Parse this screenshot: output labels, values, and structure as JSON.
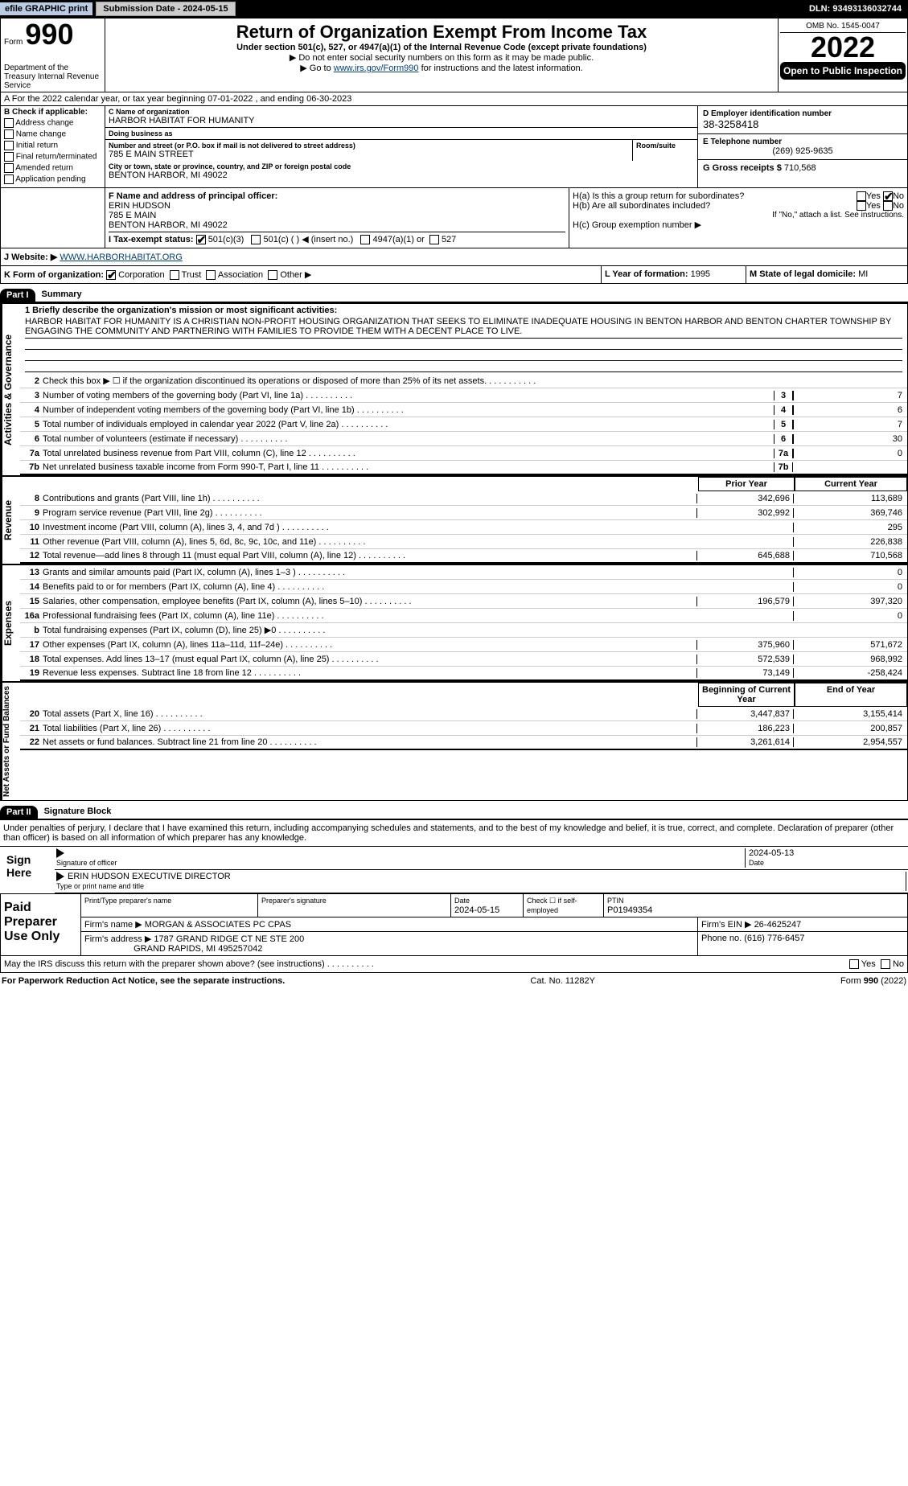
{
  "topbar": {
    "efile": "efile GRAPHIC print",
    "submission": "Submission Date - 2024-05-15",
    "dln": "DLN: 93493136032744"
  },
  "header": {
    "formword": "Form",
    "formnum": "990",
    "dept": "Department of the Treasury Internal Revenue Service",
    "title": "Return of Organization Exempt From Income Tax",
    "sub": "Under section 501(c), 527, or 4947(a)(1) of the Internal Revenue Code (except private foundations)",
    "note1": "▶ Do not enter social security numbers on this form as it may be made public.",
    "note2_pre": "▶ Go to ",
    "note2_link": "www.irs.gov/Form990",
    "note2_post": " for instructions and the latest information.",
    "omb": "OMB No. 1545-0047",
    "year": "2022",
    "inspect": "Open to Public Inspection"
  },
  "rowA": {
    "text": "A For the 2022 calendar year, or tax year beginning 07-01-2022    , and ending 06-30-2023"
  },
  "B": {
    "heading": "B Check if applicable:",
    "items": [
      "Address change",
      "Name change",
      "Initial return",
      "Final return/terminated",
      "Amended return",
      "Application pending"
    ]
  },
  "C": {
    "name_label": "C Name of organization",
    "name": "HARBOR HABITAT FOR HUMANITY",
    "dba_label": "Doing business as",
    "dba": "",
    "street_label": "Number and street (or P.O. box if mail is not delivered to street address)",
    "street": "785 E MAIN STREET",
    "room_label": "Room/suite",
    "city_label": "City or town, state or province, country, and ZIP or foreign postal code",
    "city": "BENTON HARBOR, MI  49022",
    "F_label": "F Name and address of principal officer:",
    "F_name": "ERIN HUDSON",
    "F_street": "785 E MAIN",
    "F_city": "BENTON HARBOR, MI  49022"
  },
  "D": {
    "ein_label": "D Employer identification number",
    "ein": "38-3258418",
    "phone_label": "E Telephone number",
    "phone": "(269) 925-9635",
    "gross_label": "G Gross receipts $",
    "gross": "710,568"
  },
  "H": {
    "a_label": "H(a)  Is this a group return for subordinates?",
    "a_yes": "Yes",
    "a_no": "No",
    "b_label": "H(b)  Are all subordinates included?",
    "b_yes": "Yes",
    "b_no": "No",
    "b_note": "If \"No,\" attach a list. See instructions.",
    "c_label": "H(c)  Group exemption number ▶"
  },
  "I": {
    "label": "I  Tax-exempt status:",
    "o1": "501(c)(3)",
    "o2": "501(c) (   ) ◀ (insert no.)",
    "o3": "4947(a)(1) or",
    "o4": "527"
  },
  "J": {
    "label": "J   Website: ▶",
    "url": "WWW.HARBORHABITAT.ORG"
  },
  "K": {
    "label": "K Form of organization:",
    "o1": "Corporation",
    "o2": "Trust",
    "o3": "Association",
    "o4": "Other ▶"
  },
  "L": {
    "label": "L Year of formation:",
    "val": "1995"
  },
  "M": {
    "label": "M State of legal domicile:",
    "val": "MI"
  },
  "part1": {
    "header": "Part I",
    "title": "Summary"
  },
  "vtabs": {
    "act": "Activities & Governance",
    "rev": "Revenue",
    "exp": "Expenses",
    "net": "Net Assets or Fund Balances"
  },
  "mission": {
    "label": "1  Briefly describe the organization's mission or most significant activities:",
    "text": "HARBOR HABITAT FOR HUMANITY IS A CHRISTIAN NON-PROFIT HOUSING ORGANIZATION THAT SEEKS TO ELIMINATE INADEQUATE HOUSING IN BENTON HARBOR AND BENTON CHARTER TOWNSHIP BY ENGAGING THE COMMUNITY AND PARTNERING WITH FAMILIES TO PROVIDE THEM WITH A DECENT PLACE TO LIVE."
  },
  "gov_lines": [
    {
      "n": "2",
      "d": "Check this box ▶ ☐ if the organization discontinued its operations or disposed of more than 25% of its net assets.",
      "box": "",
      "v": ""
    },
    {
      "n": "3",
      "d": "Number of voting members of the governing body (Part VI, line 1a)",
      "box": "3",
      "v": "7"
    },
    {
      "n": "4",
      "d": "Number of independent voting members of the governing body (Part VI, line 1b)",
      "box": "4",
      "v": "6"
    },
    {
      "n": "5",
      "d": "Total number of individuals employed in calendar year 2022 (Part V, line 2a)",
      "box": "5",
      "v": "7"
    },
    {
      "n": "6",
      "d": "Total number of volunteers (estimate if necessary)",
      "box": "6",
      "v": "30"
    },
    {
      "n": "7a",
      "d": "Total unrelated business revenue from Part VIII, column (C), line 12",
      "box": "7a",
      "v": "0"
    },
    {
      "n": "7b",
      "d": "Net unrelated business taxable income from Form 990-T, Part I, line 11",
      "box": "7b",
      "v": ""
    }
  ],
  "year_cols": {
    "prior": "Prior Year",
    "current": "Current Year",
    "boy": "Beginning of Current Year",
    "eoy": "End of Year"
  },
  "rev_lines": [
    {
      "n": "8",
      "d": "Contributions and grants (Part VIII, line 1h)",
      "p": "342,696",
      "c": "113,689"
    },
    {
      "n": "9",
      "d": "Program service revenue (Part VIII, line 2g)",
      "p": "302,992",
      "c": "369,746"
    },
    {
      "n": "10",
      "d": "Investment income (Part VIII, column (A), lines 3, 4, and 7d )",
      "p": "",
      "c": "295"
    },
    {
      "n": "11",
      "d": "Other revenue (Part VIII, column (A), lines 5, 6d, 8c, 9c, 10c, and 11e)",
      "p": "",
      "c": "226,838"
    },
    {
      "n": "12",
      "d": "Total revenue—add lines 8 through 11 (must equal Part VIII, column (A), line 12)",
      "p": "645,688",
      "c": "710,568"
    }
  ],
  "exp_lines": [
    {
      "n": "13",
      "d": "Grants and similar amounts paid (Part IX, column (A), lines 1–3 )",
      "p": "",
      "c": "0"
    },
    {
      "n": "14",
      "d": "Benefits paid to or for members (Part IX, column (A), line 4)",
      "p": "",
      "c": "0"
    },
    {
      "n": "15",
      "d": "Salaries, other compensation, employee benefits (Part IX, column (A), lines 5–10)",
      "p": "196,579",
      "c": "397,320"
    },
    {
      "n": "16a",
      "d": "Professional fundraising fees (Part IX, column (A), line 11e)",
      "p": "",
      "c": "0"
    },
    {
      "n": "b",
      "d": "Total fundraising expenses (Part IX, column (D), line 25) ▶0",
      "p": "shaded",
      "c": "shaded"
    },
    {
      "n": "17",
      "d": "Other expenses (Part IX, column (A), lines 11a–11d, 11f–24e)",
      "p": "375,960",
      "c": "571,672"
    },
    {
      "n": "18",
      "d": "Total expenses. Add lines 13–17 (must equal Part IX, column (A), line 25)",
      "p": "572,539",
      "c": "968,992"
    },
    {
      "n": "19",
      "d": "Revenue less expenses. Subtract line 18 from line 12",
      "p": "73,149",
      "c": "-258,424"
    }
  ],
  "net_lines": [
    {
      "n": "20",
      "d": "Total assets (Part X, line 16)",
      "p": "3,447,837",
      "c": "3,155,414"
    },
    {
      "n": "21",
      "d": "Total liabilities (Part X, line 26)",
      "p": "186,223",
      "c": "200,857"
    },
    {
      "n": "22",
      "d": "Net assets or fund balances. Subtract line 21 from line 20",
      "p": "3,261,614",
      "c": "2,954,557"
    }
  ],
  "part2": {
    "header": "Part II",
    "title": "Signature Block"
  },
  "sig": {
    "penalty": "Under penalties of perjury, I declare that I have examined this return, including accompanying schedules and statements, and to the best of my knowledge and belief, it is true, correct, and complete. Declaration of preparer (other than officer) is based on all information of which preparer has any knowledge.",
    "sign_here": "Sign Here",
    "sig_officer": "Signature of officer",
    "date": "2024-05-13",
    "date_label": "Date",
    "officer_name": "ERIN HUDSON  EXECUTIVE DIRECTOR",
    "name_label": "Type or print name and title"
  },
  "paid": {
    "label": "Paid Preparer Use Only",
    "h1": "Print/Type preparer's name",
    "h2": "Preparer's signature",
    "h3": "Date",
    "h3v": "2024-05-15",
    "h4": "Check ☐ if self-employed",
    "h5": "PTIN",
    "h5v": "P01949354",
    "firm_label": "Firm's name    ▶",
    "firm": "MORGAN & ASSOCIATES PC CPAS",
    "ein_label": "Firm's EIN ▶",
    "ein": "26-4625247",
    "addr_label": "Firm's address ▶",
    "addr1": "1787 GRAND RIDGE CT NE STE 200",
    "addr2": "GRAND RAPIDS, MI  495257042",
    "phone_label": "Phone no.",
    "phone": "(616) 776-6457"
  },
  "discuss": {
    "text": "May the IRS discuss this return with the preparer shown above? (see instructions)",
    "yes": "Yes",
    "no": "No"
  },
  "footer": {
    "left": "For Paperwork Reduction Act Notice, see the separate instructions.",
    "mid": "Cat. No. 11282Y",
    "right": "Form 990 (2022)"
  }
}
